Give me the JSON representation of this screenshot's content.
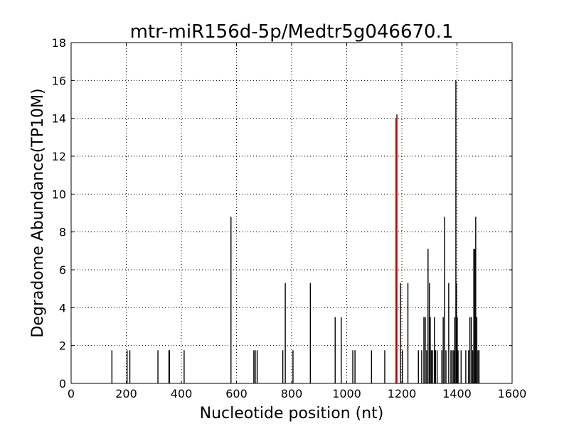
{
  "chart_data": {
    "type": "bar",
    "title": "mtr-miR156d-5p/Medtr5g046670.1",
    "xlabel": "Nucleotide position (nt)",
    "ylabel": "Degradome Abundance(TP10M)",
    "xlim": [
      0,
      1600
    ],
    "ylim": [
      0,
      18
    ],
    "xticks": [
      0,
      200,
      400,
      600,
      800,
      1000,
      1200,
      1400,
      1600
    ],
    "yticks": [
      0,
      2,
      4,
      6,
      8,
      10,
      12,
      14,
      16,
      18
    ],
    "grid": true,
    "series": [
      {
        "color": "#000000",
        "points": [
          {
            "x": 148,
            "y": 1.75
          },
          {
            "x": 203,
            "y": 1.75
          },
          {
            "x": 213,
            "y": 1.75
          },
          {
            "x": 315,
            "y": 1.75
          },
          {
            "x": 355,
            "y": 1.75
          },
          {
            "x": 357,
            "y": 1.75
          },
          {
            "x": 410,
            "y": 1.75
          },
          {
            "x": 580,
            "y": 8.8
          },
          {
            "x": 663,
            "y": 1.75
          },
          {
            "x": 668,
            "y": 1.75
          },
          {
            "x": 675,
            "y": 1.75
          },
          {
            "x": 768,
            "y": 1.75
          },
          {
            "x": 777,
            "y": 5.3
          },
          {
            "x": 805,
            "y": 1.75
          },
          {
            "x": 868,
            "y": 5.3
          },
          {
            "x": 958,
            "y": 3.5
          },
          {
            "x": 980,
            "y": 3.5
          },
          {
            "x": 1022,
            "y": 1.75
          },
          {
            "x": 1030,
            "y": 1.75
          },
          {
            "x": 1090,
            "y": 1.75
          },
          {
            "x": 1138,
            "y": 1.75
          },
          {
            "x": 1182,
            "y": 14.2
          },
          {
            "x": 1195,
            "y": 5.3
          },
          {
            "x": 1202,
            "y": 1.75
          },
          {
            "x": 1222,
            "y": 5.3
          },
          {
            "x": 1260,
            "y": 1.75
          },
          {
            "x": 1272,
            "y": 1.75
          },
          {
            "x": 1280,
            "y": 3.5
          },
          {
            "x": 1285,
            "y": 3.5
          },
          {
            "x": 1290,
            "y": 1.75
          },
          {
            "x": 1295,
            "y": 7.1
          },
          {
            "x": 1300,
            "y": 5.3
          },
          {
            "x": 1303,
            "y": 3.5
          },
          {
            "x": 1307,
            "y": 1.75
          },
          {
            "x": 1312,
            "y": 1.75
          },
          {
            "x": 1318,
            "y": 3.5
          },
          {
            "x": 1322,
            "y": 1.75
          },
          {
            "x": 1328,
            "y": 1.75
          },
          {
            "x": 1345,
            "y": 1.75
          },
          {
            "x": 1350,
            "y": 3.5
          },
          {
            "x": 1355,
            "y": 8.8
          },
          {
            "x": 1360,
            "y": 1.75
          },
          {
            "x": 1370,
            "y": 5.3
          },
          {
            "x": 1378,
            "y": 1.75
          },
          {
            "x": 1383,
            "y": 1.75
          },
          {
            "x": 1388,
            "y": 1.75
          },
          {
            "x": 1392,
            "y": 3.5
          },
          {
            "x": 1396,
            "y": 16.0
          },
          {
            "x": 1398,
            "y": 5.3
          },
          {
            "x": 1401,
            "y": 3.5
          },
          {
            "x": 1404,
            "y": 1.75
          },
          {
            "x": 1415,
            "y": 1.75
          },
          {
            "x": 1432,
            "y": 1.75
          },
          {
            "x": 1442,
            "y": 1.75
          },
          {
            "x": 1447,
            "y": 3.5
          },
          {
            "x": 1452,
            "y": 3.5
          },
          {
            "x": 1457,
            "y": 1.75
          },
          {
            "x": 1461,
            "y": 7.1
          },
          {
            "x": 1465,
            "y": 7.1
          },
          {
            "x": 1468,
            "y": 8.8
          },
          {
            "x": 1472,
            "y": 3.5
          },
          {
            "x": 1476,
            "y": 1.75
          },
          {
            "x": 1480,
            "y": 1.75
          }
        ]
      },
      {
        "color": "#cc0000",
        "points": [
          {
            "x": 1180,
            "y": 14.0
          }
        ]
      }
    ]
  }
}
